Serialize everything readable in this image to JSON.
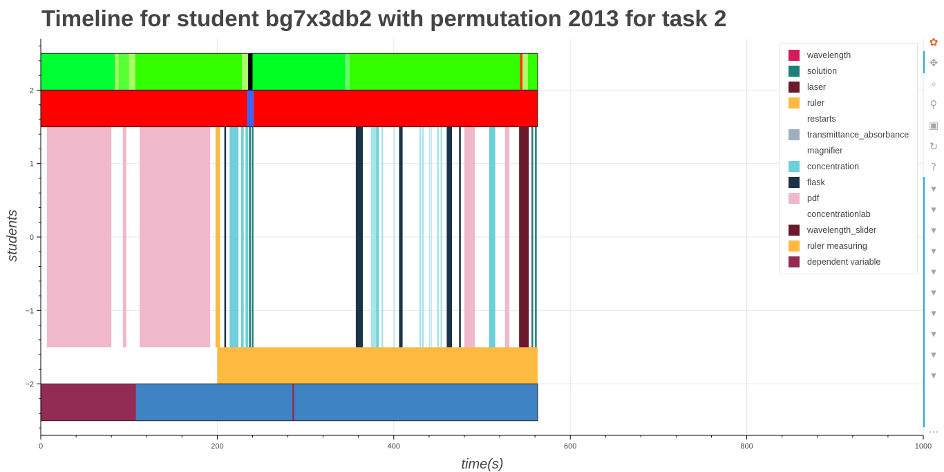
{
  "title": "Timeline for student bg7x3db2 with permutation 2013 for task 2",
  "chart_data": {
    "type": "timeline",
    "title": "Timeline for student bg7x3db2 with permutation 2013 for task 2",
    "xlabel": "time(s)",
    "ylabel": "students",
    "xlim": [
      0,
      1000
    ],
    "ylim": [
      -2.7,
      2.7
    ],
    "grid": true,
    "legend_placement": "top-right",
    "x_ticks": [
      "0",
      "200",
      "400",
      "600",
      "800",
      "1000"
    ],
    "y_ticks": [
      "−2",
      "−1",
      "0",
      "1",
      "2"
    ],
    "legend": [
      {
        "label": "wavelength",
        "color": "#d61a5a"
      },
      {
        "label": "solution",
        "color": "#1f7f7a"
      },
      {
        "label": "laser",
        "color": "#6b1a2e"
      },
      {
        "label": "ruler",
        "color": "#fdb940"
      },
      {
        "label": "restarts",
        "color": ""
      },
      {
        "label": "transmittance_absorbance",
        "color": "#9fadbf"
      },
      {
        "label": "magnifier",
        "color": ""
      },
      {
        "label": "concentration",
        "color": "#6ccfdc"
      },
      {
        "label": "flask",
        "color": "#1c3347"
      },
      {
        "label": "pdf",
        "color": "#efb8cb"
      },
      {
        "label": "concentrationlab",
        "color": ""
      },
      {
        "label": "wavelength_slider",
        "color": "#6b1a2e"
      },
      {
        "label": "ruler measuring",
        "color": "#fdb940"
      },
      {
        "label": "dependent variable",
        "color": "#922c54"
      }
    ],
    "bands": [
      {
        "name": "top-activity",
        "y": [
          2,
          2.5
        ],
        "segments": [
          {
            "x": [
              0,
              84
            ],
            "color": "#00ff33"
          },
          {
            "x": [
              84,
              88
            ],
            "color": "#aaff66"
          },
          {
            "x": [
              88,
              100
            ],
            "color": "#55ff33"
          },
          {
            "x": [
              100,
              107
            ],
            "color": "#aaff66"
          },
          {
            "x": [
              107,
              228
            ],
            "color": "#33ff00"
          },
          {
            "x": [
              228,
              235
            ],
            "color": "#aaff66"
          },
          {
            "x": [
              235,
              240
            ],
            "color": "#000000"
          },
          {
            "x": [
              240,
              345
            ],
            "color": "#00ff22"
          },
          {
            "x": [
              345,
              350
            ],
            "color": "#66ff66"
          },
          {
            "x": [
              350,
              543
            ],
            "color": "#33ff00"
          },
          {
            "x": [
              543,
              546
            ],
            "color": "#ff3300"
          },
          {
            "x": [
              546,
              552
            ],
            "color": "#aaff66"
          },
          {
            "x": [
              552,
              563
            ],
            "color": "#33ff00"
          }
        ]
      },
      {
        "name": "second-activity",
        "y": [
          1.5,
          2
        ],
        "segments": [
          {
            "x": [
              0,
              234
            ],
            "color": "#ff0000"
          },
          {
            "x": [
              234,
              241
            ],
            "color": "#3366ff"
          },
          {
            "x": [
              241,
              563
            ],
            "color": "#ff0000"
          }
        ]
      },
      {
        "name": "tool-usage",
        "y": [
          -1.5,
          1.5
        ],
        "segments": [
          {
            "x": [
              7,
              80
            ],
            "color": "#efb8cb"
          },
          {
            "x": [
              93,
              97
            ],
            "color": "#efb8cb"
          },
          {
            "x": [
              112,
              192
            ],
            "color": "#efb8cb"
          },
          {
            "x": [
              198,
              203
            ],
            "color": "#fdb940"
          },
          {
            "x": [
              208,
              210
            ],
            "color": "#1c3347"
          },
          {
            "x": [
              214,
              219
            ],
            "color": "#6ccfdc"
          },
          {
            "x": [
              219,
              224
            ],
            "color": "#6ccfdc"
          },
          {
            "x": [
              227,
              230
            ],
            "color": "#6ccfdc"
          },
          {
            "x": [
              232,
              235
            ],
            "color": "#6ccfdc"
          },
          {
            "x": [
              236,
              238
            ],
            "color": "#1f7f7a"
          },
          {
            "x": [
              239,
              241
            ],
            "color": "#1f7f7a"
          },
          {
            "x": [
              357,
              365
            ],
            "color": "#1c3347"
          },
          {
            "x": [
              374,
              380
            ],
            "color": "#a8e4ea"
          },
          {
            "x": [
              380,
              383
            ],
            "color": "#6ccfdc"
          },
          {
            "x": [
              386,
              388
            ],
            "color": "#a8e4ea"
          },
          {
            "x": [
              400,
              401
            ],
            "color": "#a8e4ea"
          },
          {
            "x": [
              406,
              410
            ],
            "color": "#1c3347"
          },
          {
            "x": [
              429,
              431
            ],
            "color": "#a8e4ea"
          },
          {
            "x": [
              432,
              434
            ],
            "color": "#a8e4ea"
          },
          {
            "x": [
              440,
              441
            ],
            "color": "#a8e4ea"
          },
          {
            "x": [
              442,
              443
            ],
            "color": "#a8e4ea"
          },
          {
            "x": [
              449,
              451
            ],
            "color": "#a8e4ea"
          },
          {
            "x": [
              453,
              455
            ],
            "color": "#a8e4ea"
          },
          {
            "x": [
              460,
              466
            ],
            "color": "#1c3347"
          },
          {
            "x": [
              474,
              476
            ],
            "color": "#1c3347"
          },
          {
            "x": [
              480,
              492
            ],
            "color": "#efb8cb"
          },
          {
            "x": [
              508,
              515
            ],
            "color": "#6ccfdc"
          },
          {
            "x": [
              526,
              531
            ],
            "color": "#efb8cb"
          },
          {
            "x": [
              542,
              553
            ],
            "color": "#6b1a2e"
          },
          {
            "x": [
              556,
              558
            ],
            "color": "#1f7f7a"
          },
          {
            "x": [
              560,
              562
            ],
            "color": "#1f7f7a"
          }
        ]
      },
      {
        "name": "ruler-measuring-band",
        "y": [
          -2,
          -1.5
        ],
        "segments": [
          {
            "x": [
              200,
              563
            ],
            "color": "#fdb940"
          }
        ]
      },
      {
        "name": "dependent-variable-band",
        "y": [
          -2.5,
          -2
        ],
        "segments": [
          {
            "x": [
              0,
              108
            ],
            "color": "#922c54"
          },
          {
            "x": [
              108,
              285
            ],
            "color": "#3e84c5"
          },
          {
            "x": [
              285,
              287
            ],
            "color": "#922c54"
          },
          {
            "x": [
              287,
              563
            ],
            "color": "#3e84c5"
          }
        ]
      }
    ]
  },
  "toolbar": {
    "tools": [
      {
        "name": "bokeh-logo-icon",
        "glyph": "✿",
        "color": "#e8612c"
      },
      {
        "name": "pan-icon",
        "glyph": "✥",
        "color": "#a0a6ad"
      },
      {
        "name": "box-zoom-icon",
        "glyph": "⌕",
        "color": "#a0a6ad"
      },
      {
        "name": "wheel-zoom-icon",
        "glyph": "⚲",
        "color": "#a0a6ad"
      },
      {
        "name": "save-icon",
        "glyph": "▣",
        "color": "#a0a6ad"
      },
      {
        "name": "reset-icon",
        "glyph": "↻",
        "color": "#a0a6ad"
      },
      {
        "name": "help-icon",
        "glyph": "?",
        "color": "#a0a6ad"
      },
      {
        "name": "hover-icon",
        "glyph": "▾",
        "color": "#a0a6ad"
      },
      {
        "name": "hover-icon",
        "glyph": "▾",
        "color": "#a0a6ad"
      },
      {
        "name": "hover-icon",
        "glyph": "▾",
        "color": "#a0a6ad"
      },
      {
        "name": "hover-icon",
        "glyph": "▾",
        "color": "#a0a6ad"
      },
      {
        "name": "hover-icon",
        "glyph": "▾",
        "color": "#a0a6ad"
      },
      {
        "name": "hover-icon",
        "glyph": "▾",
        "color": "#a0a6ad"
      },
      {
        "name": "hover-icon",
        "glyph": "▾",
        "color": "#a0a6ad"
      },
      {
        "name": "hover-icon",
        "glyph": "▾",
        "color": "#a0a6ad"
      },
      {
        "name": "hover-icon",
        "glyph": "▾",
        "color": "#a0a6ad"
      },
      {
        "name": "hover-icon",
        "glyph": "▾",
        "color": "#a0a6ad"
      },
      {
        "name": "more-icon",
        "glyph": "…",
        "color": "#a0a6ad"
      }
    ]
  }
}
